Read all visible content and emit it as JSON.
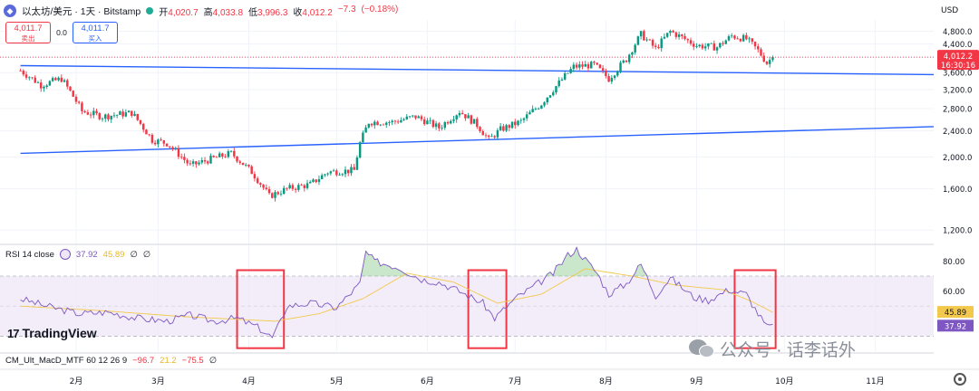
{
  "header": {
    "symbol_icon": "ethereum-icon",
    "title": "以太坊/美元 · 1天 · Bitstamp",
    "open_label": "开",
    "open": "4,020.7",
    "high_label": "高",
    "high": "4,033.8",
    "low_label": "低",
    "low": "3,996.3",
    "close_label": "收",
    "close": "4,012.2",
    "change": "−7.3",
    "change_pct": "(−0.18%)"
  },
  "trade": {
    "sell_price": "4,011.7",
    "sell_label": "卖出",
    "spread": "0.0",
    "buy_price": "4,011.7",
    "buy_label": "买入"
  },
  "rsi_legend": {
    "name": "RSI 14 close",
    "rsi": "37.92",
    "ma": "45.89",
    "z1": "∅",
    "z2": "∅"
  },
  "macd_legend": {
    "name": "CM_Ult_MacD_MTF 60 12 26 9",
    "v1": "−96.7",
    "v2": "21.2",
    "v3": "−75.5",
    "z": "∅"
  },
  "branding": {
    "logo_text": "TradingView",
    "logo_mark": "17"
  },
  "watermark": {
    "text": "公众号 · 话李话外"
  },
  "colors": {
    "up": "#089981",
    "down": "#f23645",
    "trendline": "#2962ff",
    "rsi": "#7e57c2",
    "rsi_ma": "#f2c94c",
    "band": "#ede7f6",
    "highlight": "#f23645",
    "grid": "#f0f3fa"
  },
  "chart_data": [
    {
      "type": "candlestick",
      "title": "以太坊/美元 · 1天 · Bitstamp",
      "currency": "USD",
      "scale": "log",
      "ylim": [
        1100,
        5200
      ],
      "y_ticks": [
        "4,800.0",
        "4,400.0",
        "4,000.0",
        "3,600.0",
        "3,200.0",
        "2,800.0",
        "2,400.0",
        "2,000.0",
        "1,600.0",
        "1,200.0"
      ],
      "x_ticks": [
        "2月",
        "3月",
        "4月",
        "5月",
        "6月",
        "7月",
        "8月",
        "9月",
        "10月",
        "11月"
      ],
      "last_price_label": "4,012.2",
      "countdown_label": "16:30:16",
      "anchors": [
        [
          "01-13",
          3650
        ],
        [
          "01-20",
          3300
        ],
        [
          "01-27",
          3450
        ],
        [
          "02-03",
          2750
        ],
        [
          "02-10",
          2650
        ],
        [
          "02-20",
          2720
        ],
        [
          "02-27",
          2250
        ],
        [
          "03-04",
          2200
        ],
        [
          "03-12",
          1880
        ],
        [
          "03-20",
          1980
        ],
        [
          "03-26",
          2050
        ],
        [
          "04-02",
          1800
        ],
        [
          "04-08",
          1520
        ],
        [
          "04-14",
          1600
        ],
        [
          "04-22",
          1650
        ],
        [
          "04-28",
          1800
        ],
        [
          "05-07",
          1820
        ],
        [
          "05-09",
          2200
        ],
        [
          "05-12",
          2550
        ],
        [
          "05-20",
          2550
        ],
        [
          "05-28",
          2650
        ],
        [
          "06-05",
          2450
        ],
        [
          "06-12",
          2750
        ],
        [
          "06-18",
          2500
        ],
        [
          "06-22",
          2250
        ],
        [
          "06-26",
          2420
        ],
        [
          "07-03",
          2560
        ],
        [
          "07-10",
          2900
        ],
        [
          "07-16",
          3350
        ],
        [
          "07-21",
          3750
        ],
        [
          "07-28",
          3800
        ],
        [
          "08-02",
          3450
        ],
        [
          "08-08",
          3950
        ],
        [
          "08-13",
          4700
        ],
        [
          "08-18",
          4250
        ],
        [
          "08-23",
          4800
        ],
        [
          "08-28",
          4550
        ],
        [
          "09-01",
          4350
        ],
        [
          "09-08",
          4300
        ],
        [
          "09-13",
          4650
        ],
        [
          "09-18",
          4550
        ],
        [
          "09-22",
          4200
        ],
        [
          "09-25",
          3850
        ],
        [
          "09-27",
          4012
        ]
      ],
      "trendlines": [
        {
          "name": "upper",
          "from": [
            "01-13",
            3780
          ],
          "to": [
            "11-21",
            3550
          ]
        },
        {
          "name": "lower",
          "from": [
            "01-13",
            2050
          ],
          "to": [
            "11-21",
            2470
          ]
        }
      ]
    },
    {
      "type": "line",
      "title": "RSI 14 close",
      "ylim": [
        20,
        90
      ],
      "y_ticks": [
        "80.00",
        "60.00"
      ],
      "band": [
        30,
        70
      ],
      "last_rsi": "37.92",
      "last_ma": "45.89",
      "series": [
        {
          "name": "RSI",
          "anchors": [
            [
              "01-13",
              55
            ],
            [
              "01-22",
              50
            ],
            [
              "02-02",
              45
            ],
            [
              "02-12",
              46
            ],
            [
              "02-22",
              42
            ],
            [
              "03-04",
              40
            ],
            [
              "03-12",
              44
            ],
            [
              "03-20",
              40
            ],
            [
              "03-28",
              42
            ],
            [
              "04-04",
              36
            ],
            [
              "04-09",
              29
            ],
            [
              "04-12",
              40
            ],
            [
              "04-14",
              50
            ],
            [
              "04-22",
              52
            ],
            [
              "05-01",
              49
            ],
            [
              "05-09",
              65
            ],
            [
              "05-11",
              86
            ],
            [
              "05-14",
              80
            ],
            [
              "05-22",
              76
            ],
            [
              "05-30",
              68
            ],
            [
              "06-05",
              66
            ],
            [
              "06-12",
              60
            ],
            [
              "06-20",
              52
            ],
            [
              "06-24",
              42
            ],
            [
              "07-01",
              55
            ],
            [
              "07-08",
              64
            ],
            [
              "07-14",
              72
            ],
            [
              "07-19",
              84
            ],
            [
              "07-22",
              88
            ],
            [
              "07-29",
              72
            ],
            [
              "08-02",
              58
            ],
            [
              "08-08",
              65
            ],
            [
              "08-13",
              78
            ],
            [
              "08-18",
              57
            ],
            [
              "08-23",
              69
            ],
            [
              "08-31",
              56
            ],
            [
              "09-05",
              54
            ],
            [
              "09-12",
              61
            ],
            [
              "09-18",
              58
            ],
            [
              "09-22",
              45
            ],
            [
              "09-25",
              36
            ],
            [
              "09-27",
              37.92
            ]
          ]
        },
        {
          "name": "RSI MA",
          "anchors": [
            [
              "01-13",
              50
            ],
            [
              "02-10",
              47
            ],
            [
              "03-10",
              43
            ],
            [
              "04-10",
              40
            ],
            [
              "04-25",
              45
            ],
            [
              "05-10",
              55
            ],
            [
              "05-25",
              72
            ],
            [
              "06-10",
              66
            ],
            [
              "06-25",
              52
            ],
            [
              "07-10",
              58
            ],
            [
              "07-25",
              75
            ],
            [
              "08-10",
              70
            ],
            [
              "08-25",
              64
            ],
            [
              "09-10",
              61
            ],
            [
              "09-20",
              53
            ],
            [
              "09-27",
              45.89
            ]
          ]
        }
      ],
      "highlights": [
        [
          "03-28",
          "04-13"
        ],
        [
          "06-15",
          "06-28"
        ],
        [
          "09-14",
          "09-28"
        ]
      ]
    }
  ]
}
